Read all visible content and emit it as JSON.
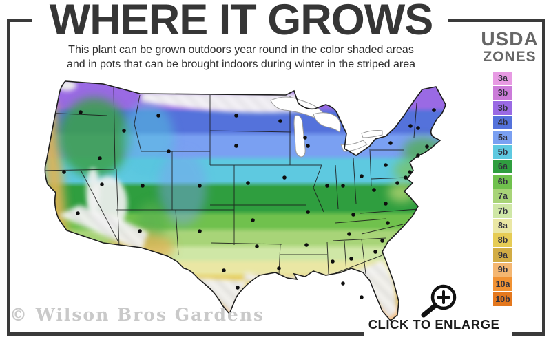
{
  "header": {
    "title": "WHERE IT GROWS",
    "subtitle_line1": "This plant can be grown outdoors year round in the color shaded areas",
    "subtitle_line2": "and in pots that can be brought indoors during winter in the striped area"
  },
  "legend": {
    "title_line1": "USDA",
    "title_line2": "ZONES",
    "zones": [
      {
        "label": "3a",
        "color": "#e79ae3"
      },
      {
        "label": "3b",
        "color": "#cb7bd9"
      },
      {
        "label": "3b",
        "color": "#9a6ae4"
      },
      {
        "label": "4b",
        "color": "#5472db"
      },
      {
        "label": "5a",
        "color": "#7aa0f2"
      },
      {
        "label": "5b",
        "color": "#5ec9e0"
      },
      {
        "label": "6a",
        "color": "#2f9e3f"
      },
      {
        "label": "6b",
        "color": "#70c14d"
      },
      {
        "label": "7a",
        "color": "#a8d478"
      },
      {
        "label": "7b",
        "color": "#cfe7a6"
      },
      {
        "label": "8a",
        "color": "#eae7a4"
      },
      {
        "label": "8b",
        "color": "#e6cc55"
      },
      {
        "label": "9a",
        "color": "#d2ac44"
      },
      {
        "label": "9b",
        "color": "#f4b671"
      },
      {
        "label": "10a",
        "color": "#f19233"
      },
      {
        "label": "10b",
        "color": "#e4781e"
      }
    ]
  },
  "map": {
    "dot_color": "#0e0e0e",
    "dots": [
      [
        62,
        55
      ],
      [
        90,
        122
      ],
      [
        38,
        142
      ],
      [
        58,
        202
      ],
      [
        93,
        160
      ],
      [
        125,
        82
      ],
      [
        175,
        60
      ],
      [
        190,
        112
      ],
      [
        152,
        162
      ],
      [
        235,
        162
      ],
      [
        148,
        228
      ],
      [
        235,
        228
      ],
      [
        288,
        60
      ],
      [
        288,
        104
      ],
      [
        305,
        158
      ],
      [
        312,
        212
      ],
      [
        318,
        250
      ],
      [
        270,
        285
      ],
      [
        290,
        310
      ],
      [
        352,
        68
      ],
      [
        358,
        150
      ],
      [
        392,
        200
      ],
      [
        390,
        248
      ],
      [
        350,
        282
      ],
      [
        388,
        92
      ],
      [
        420,
        162
      ],
      [
        392,
        104
      ],
      [
        443,
        162
      ],
      [
        470,
        148
      ],
      [
        458,
        204
      ],
      [
        452,
        232
      ],
      [
        428,
        272
      ],
      [
        455,
        268
      ],
      [
        490,
        258
      ],
      [
        443,
        304
      ],
      [
        470,
        324
      ],
      [
        500,
        242
      ],
      [
        508,
        216
      ],
      [
        505,
        188
      ],
      [
        488,
        168
      ],
      [
        505,
        132
      ],
      [
        512,
        100
      ],
      [
        575,
        52
      ],
      [
        541,
        75
      ],
      [
        552,
        78
      ],
      [
        565,
        105
      ],
      [
        552,
        118
      ],
      [
        540,
        142
      ],
      [
        522,
        158
      ],
      [
        534,
        150
      ]
    ]
  },
  "footer": {
    "watermark": "© Wilson Bros Gardens",
    "cta": "CLICK TO ENLARGE",
    "icon": "magnifier-plus-icon"
  }
}
